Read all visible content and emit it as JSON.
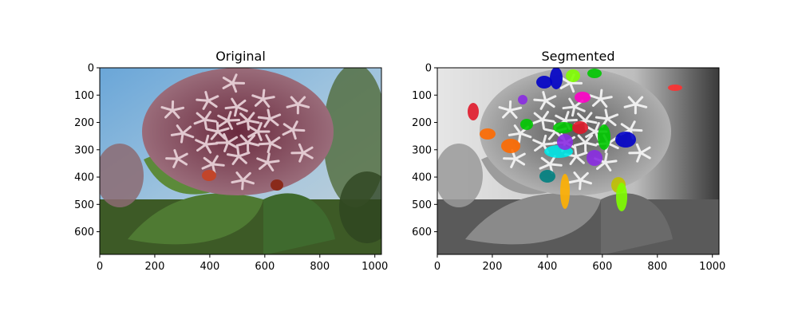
{
  "chart_data": [
    {
      "type": "image",
      "title": "Original",
      "xlim": [
        0,
        1024
      ],
      "ylim": [
        683,
        0
      ],
      "xticks": [
        0,
        200,
        400,
        600,
        800,
        1000
      ],
      "yticks": [
        0,
        100,
        200,
        300,
        400,
        500,
        600
      ],
      "xticklabels": [
        "0",
        "200",
        "400",
        "600",
        "800",
        "1000"
      ],
      "yticklabels": [
        "0",
        "100",
        "200",
        "300",
        "400",
        "500",
        "600"
      ]
    },
    {
      "type": "image",
      "title": "Segmented",
      "xlim": [
        0,
        1024
      ],
      "ylim": [
        683,
        0
      ],
      "xticks": [
        0,
        200,
        400,
        600,
        800,
        1000
      ],
      "yticks": [
        0,
        100,
        200,
        300,
        400,
        500,
        600
      ],
      "xticklabels": [
        "0",
        "200",
        "400",
        "600",
        "800",
        "1000"
      ],
      "yticklabels": [
        "0",
        "100",
        "200",
        "300",
        "400",
        "500",
        "600"
      ],
      "segment_colors": [
        "#e0182a",
        "#ff6a00",
        "#0000c8",
        "#00c800",
        "#ff00c8",
        "#00e5e5",
        "#8a2be2",
        "#ffb000",
        "#008080",
        "#7fff00",
        "#c0c000",
        "#ff3030"
      ]
    }
  ]
}
